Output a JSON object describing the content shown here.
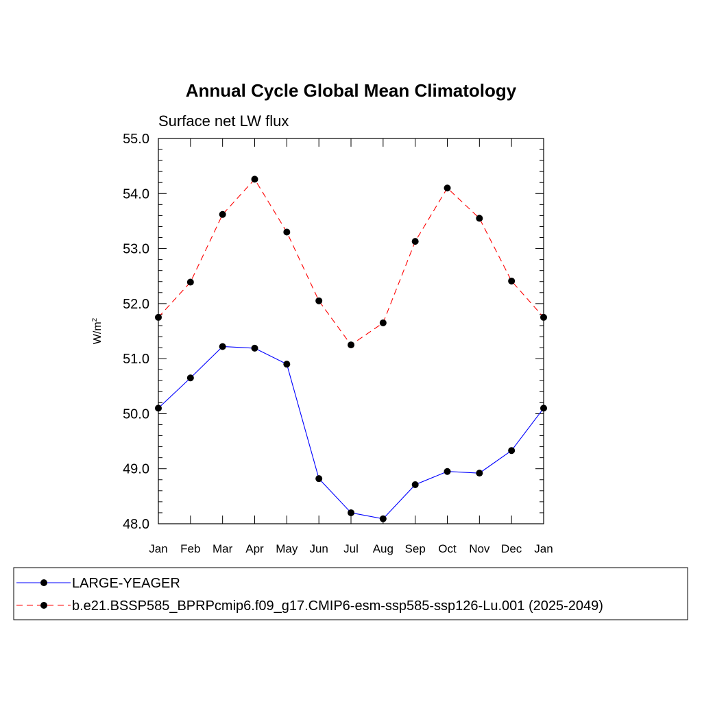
{
  "chart_data": {
    "type": "line",
    "title": "Annual Cycle Global Mean Climatology",
    "subtitle": "Surface net LW flux",
    "ylabel": "W/m",
    "ylabel_sup": "2",
    "xlabel": "",
    "ylim": [
      48.0,
      55.0
    ],
    "yticks": [
      "48.0",
      "49.0",
      "50.0",
      "51.0",
      "52.0",
      "53.0",
      "54.0",
      "55.0"
    ],
    "categories": [
      "Jan",
      "Feb",
      "Mar",
      "Apr",
      "May",
      "Jun",
      "Jul",
      "Aug",
      "Sep",
      "Oct",
      "Nov",
      "Dec",
      "Jan"
    ],
    "series": [
      {
        "name": "LARGE-YEAGER",
        "color": "#0000ff",
        "dash": "solid",
        "values": [
          50.1,
          50.65,
          51.22,
          51.19,
          50.9,
          48.82,
          48.2,
          48.09,
          48.71,
          48.95,
          48.92,
          49.33,
          50.1
        ]
      },
      {
        "name": "b.e21.BSSP585_BPRPcmip6.f09_g17.CMIP6-esm-ssp585-ssp126-Lu.001 (2025-2049)",
        "color": "#ff0000",
        "dash": "dashed",
        "values": [
          51.75,
          52.39,
          53.62,
          54.26,
          53.3,
          52.05,
          51.25,
          51.65,
          53.13,
          54.1,
          53.55,
          52.41,
          51.75
        ]
      }
    ],
    "marker_color": "#000000",
    "legend_position": "bottom"
  }
}
